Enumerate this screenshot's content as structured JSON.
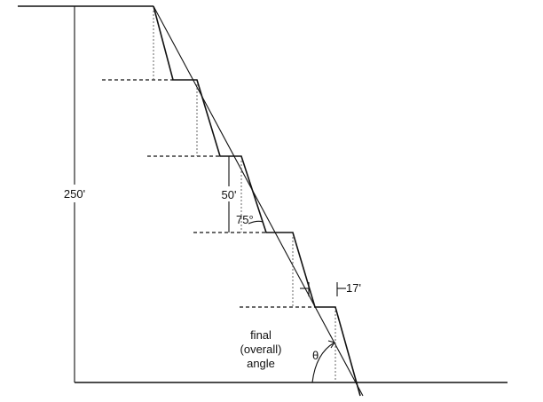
{
  "labels": {
    "total_height": "250'",
    "bench_height": "50'",
    "face_angle": "75°",
    "bench_width": "17'",
    "final_angle_line1": "final",
    "final_angle_line2": "(overall)",
    "final_angle_line3": "angle",
    "theta": "θ"
  }
}
